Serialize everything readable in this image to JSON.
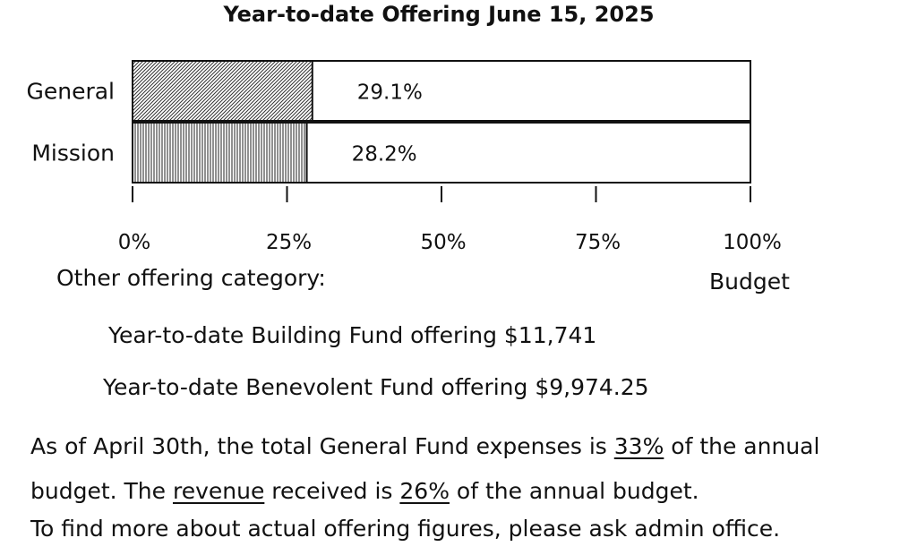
{
  "chart_data": {
    "type": "bar",
    "orientation": "horizontal",
    "title": "Year-to-date Offering June 15, 2025",
    "categories": [
      "General",
      "Mission"
    ],
    "values": [
      29.1,
      28.2
    ],
    "value_labels": [
      "29.1%",
      "28.2%"
    ],
    "xlim": [
      0,
      100
    ],
    "xticks": [
      0,
      25,
      50,
      75,
      100
    ],
    "xtick_labels": [
      "0%",
      "25%",
      "50%",
      "75%",
      "100%"
    ],
    "xlabel": "Budget",
    "grid": false,
    "fill_patterns": [
      "diagonal-hatch",
      "vertical-lines"
    ]
  },
  "other": {
    "heading": "Other offering category:",
    "building": "Year-to-date Building Fund offering $11,741",
    "benevolent": "Year-to-date Benevolent Fund offering $9,974.25"
  },
  "notes": {
    "p1_a": "As of April 30th, the total General Fund expenses is ",
    "p1_b": "33%",
    "p1_c": " of the annual budget.  The ",
    "p1_d": "revenue",
    "p1_e": " received is ",
    "p1_f": "26%",
    "p1_g": " of the annual budget.",
    "p2": "To find more about actual offering figures, please ask admin office."
  }
}
